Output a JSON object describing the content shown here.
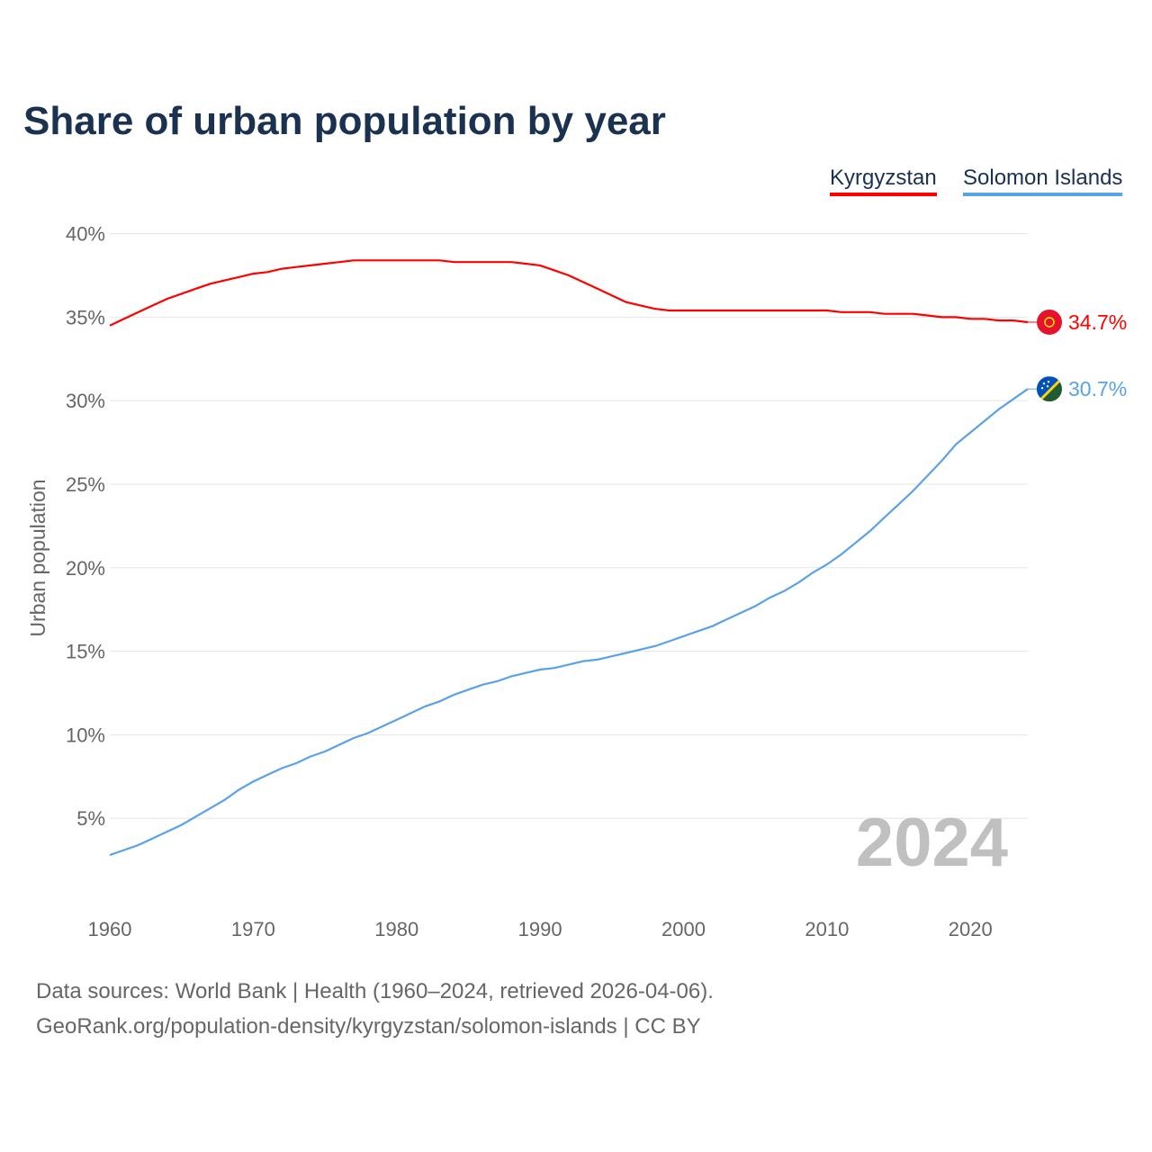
{
  "chart_data": {
    "type": "line",
    "title": "Share of urban population by year",
    "ylabel": "Urban population",
    "xlabel": "",
    "xlim": [
      1960,
      2024
    ],
    "ylim": [
      0,
      40
    ],
    "x_ticks": [
      "1960",
      "1970",
      "1980",
      "1990",
      "2000",
      "2010",
      "2020"
    ],
    "y_ticks": [
      "5%",
      "10%",
      "15%",
      "20%",
      "25%",
      "30%",
      "35%",
      "40%"
    ],
    "grid": true,
    "legend_position": "top-right",
    "year_watermark": "2024",
    "x_start": 1960,
    "series": [
      {
        "name": "Kyrgyzstan",
        "color": "#ff0000",
        "end_label": "34.7%",
        "values": [
          34.5,
          34.9,
          35.3,
          35.7,
          36.1,
          36.4,
          36.7,
          37.0,
          37.2,
          37.4,
          37.6,
          37.7,
          37.9,
          38.0,
          38.1,
          38.2,
          38.3,
          38.4,
          38.4,
          38.4,
          38.4,
          38.4,
          38.4,
          38.4,
          38.3,
          38.3,
          38.3,
          38.3,
          38.3,
          38.2,
          38.1,
          37.8,
          37.5,
          37.1,
          36.7,
          36.3,
          35.9,
          35.7,
          35.5,
          35.4,
          35.4,
          35.4,
          35.4,
          35.4,
          35.4,
          35.4,
          35.4,
          35.4,
          35.4,
          35.4,
          35.4,
          35.3,
          35.3,
          35.3,
          35.2,
          35.2,
          35.2,
          35.1,
          35.0,
          35.0,
          34.9,
          34.9,
          34.8,
          34.8,
          34.7
        ]
      },
      {
        "name": "Solomon Islands",
        "color": "#5aa2e8",
        "end_label": "30.7%",
        "values": [
          2.8,
          3.1,
          3.4,
          3.8,
          4.2,
          4.6,
          5.1,
          5.6,
          6.1,
          6.7,
          7.2,
          7.6,
          8.0,
          8.3,
          8.7,
          9.0,
          9.4,
          9.8,
          10.1,
          10.5,
          10.9,
          11.3,
          11.7,
          12.0,
          12.4,
          12.7,
          13.0,
          13.2,
          13.5,
          13.7,
          13.9,
          14.0,
          14.2,
          14.4,
          14.5,
          14.7,
          14.9,
          15.1,
          15.3,
          15.6,
          15.9,
          16.2,
          16.5,
          16.9,
          17.3,
          17.7,
          18.2,
          18.6,
          19.1,
          19.7,
          20.2,
          20.8,
          21.5,
          22.2,
          23.0,
          23.8,
          24.6,
          25.5,
          26.4,
          27.4,
          28.1,
          28.8,
          29.5,
          30.1,
          30.7
        ]
      }
    ]
  },
  "footer": {
    "line1": "Data sources: World Bank | Health (1960–2024, retrieved 2026-04-06).",
    "line2": "GeoRank.org/population-density/kyrgyzstan/solomon-islands | CC BY"
  }
}
